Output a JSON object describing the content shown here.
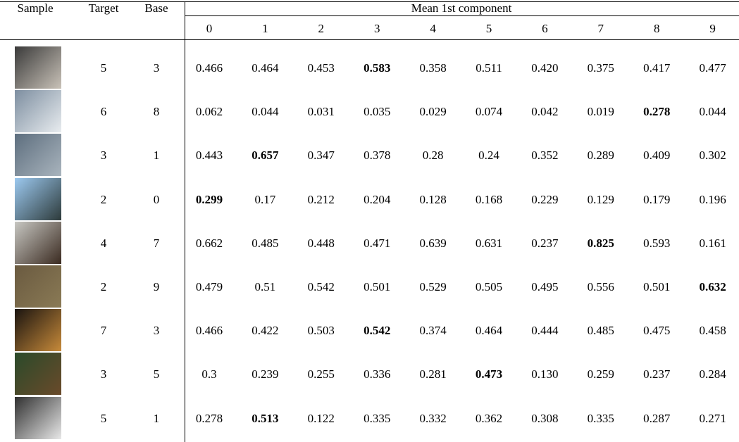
{
  "header": {
    "sample": "Sample",
    "target": "Target",
    "base": "Base",
    "group": "Mean 1st component",
    "classes": [
      "0",
      "1",
      "2",
      "3",
      "4",
      "5",
      "6",
      "7",
      "8",
      "9"
    ]
  },
  "rows": [
    {
      "target": "5",
      "base": "3",
      "values": [
        "0.466",
        "0.464",
        "0.453",
        "0.583",
        "0.358",
        "0.511",
        "0.420",
        "0.375",
        "0.417",
        "0.477"
      ],
      "bold": 3
    },
    {
      "target": "6",
      "base": "8",
      "values": [
        "0.062",
        "0.044",
        "0.031",
        "0.035",
        "0.029",
        "0.074",
        "0.042",
        "0.019",
        "0.278",
        "0.044"
      ],
      "bold": 8
    },
    {
      "target": "3",
      "base": "1",
      "values": [
        "0.443",
        "0.657",
        "0.347",
        "0.378",
        "0.28",
        "0.24",
        "0.352",
        "0.289",
        "0.409",
        "0.302"
      ],
      "bold": 1
    },
    {
      "target": "2",
      "base": "0",
      "values": [
        "0.299",
        "0.17",
        "0.212",
        "0.204",
        "0.128",
        "0.168",
        "0.229",
        "0.129",
        "0.179",
        "0.196"
      ],
      "bold": 0
    },
    {
      "target": "4",
      "base": "7",
      "values": [
        "0.662",
        "0.485",
        "0.448",
        "0.471",
        "0.639",
        "0.631",
        "0.237",
        "0.825",
        "0.593",
        "0.161"
      ],
      "bold": 7
    },
    {
      "target": "2",
      "base": "9",
      "values": [
        "0.479",
        "0.51",
        "0.542",
        "0.501",
        "0.529",
        "0.505",
        "0.495",
        "0.556",
        "0.501",
        "0.632"
      ],
      "bold": 9
    },
    {
      "target": "7",
      "base": "3",
      "values": [
        "0.466",
        "0.422",
        "0.503",
        "0.542",
        "0.374",
        "0.464",
        "0.444",
        "0.485",
        "0.475",
        "0.458"
      ],
      "bold": 3
    },
    {
      "target": "3",
      "base": "5",
      "values": [
        "0.3",
        "0.239",
        "0.255",
        "0.336",
        "0.281",
        "0.473",
        "0.130",
        "0.259",
        "0.237",
        "0.284"
      ],
      "bold": 5
    },
    {
      "target": "5",
      "base": "1",
      "values": [
        "0.278",
        "0.513",
        "0.122",
        "0.335",
        "0.332",
        "0.362",
        "0.308",
        "0.335",
        "0.287",
        "0.271"
      ],
      "bold": 1
    }
  ]
}
